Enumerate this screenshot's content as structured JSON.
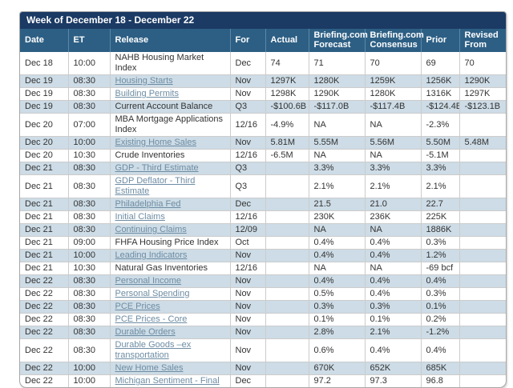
{
  "calendar": {
    "title": "Week of December 18 - December 22",
    "columns": [
      "Date",
      "ET",
      "Release",
      "For",
      "Actual",
      "Briefing.com Forecast",
      "Briefing.com Consensus",
      "Prior",
      "Revised From"
    ],
    "rows": [
      {
        "date": "Dec 18",
        "et": "10:00",
        "release": "NAHB Housing Market Index",
        "is_link": false,
        "for": "Dec",
        "actual": "74",
        "forecast": "71",
        "consensus": "70",
        "prior": "69",
        "revised_from": "70"
      },
      {
        "date": "Dec 19",
        "et": "08:30",
        "release": "Housing Starts",
        "is_link": true,
        "for": "Nov",
        "actual": "1297K",
        "forecast": "1280K",
        "consensus": "1259K",
        "prior": "1256K",
        "revised_from": "1290K"
      },
      {
        "date": "Dec 19",
        "et": "08:30",
        "release": "Building Permits",
        "is_link": true,
        "for": "Nov",
        "actual": "1298K",
        "forecast": "1290K",
        "consensus": "1280K",
        "prior": "1316K",
        "revised_from": "1297K"
      },
      {
        "date": "Dec 19",
        "et": "08:30",
        "release": "Current Account Balance",
        "is_link": false,
        "for": "Q3",
        "actual": "-$100.6B",
        "forecast": "-$117.0B",
        "consensus": "-$117.4B",
        "prior": "-$124.4B",
        "revised_from": "-$123.1B"
      },
      {
        "date": "Dec 20",
        "et": "07:00",
        "release": "MBA Mortgage Applications\nIndex",
        "is_link": false,
        "for": "12/16",
        "actual": "-4.9%",
        "forecast": "NA",
        "consensus": "NA",
        "prior": "-2.3%",
        "revised_from": ""
      },
      {
        "date": "Dec 20",
        "et": "10:00",
        "release": "Existing Home Sales",
        "is_link": true,
        "for": "Nov",
        "actual": "5.81M",
        "forecast": "5.55M",
        "consensus": "5.56M",
        "prior": "5.50M",
        "revised_from": "5.48M"
      },
      {
        "date": "Dec 20",
        "et": "10:30",
        "release": "Crude Inventories",
        "is_link": false,
        "for": "12/16",
        "actual": "-6.5M",
        "forecast": "NA",
        "consensus": "NA",
        "prior": "-5.1M",
        "revised_from": ""
      },
      {
        "date": "Dec 21",
        "et": "08:30",
        "release": "GDP - Third Estimate",
        "is_link": true,
        "for": "Q3",
        "actual": "",
        "forecast": "3.3%",
        "consensus": "3.3%",
        "prior": "3.3%",
        "revised_from": ""
      },
      {
        "date": "Dec 21",
        "et": "08:30",
        "release": "GDP Deflator - Third Estimate",
        "is_link": true,
        "for": "Q3",
        "actual": "",
        "forecast": "2.1%",
        "consensus": "2.1%",
        "prior": "2.1%",
        "revised_from": ""
      },
      {
        "date": "Dec 21",
        "et": "08:30",
        "release": "Philadelphia Fed",
        "is_link": true,
        "for": "Dec",
        "actual": "",
        "forecast": "21.5",
        "consensus": "21.0",
        "prior": "22.7",
        "revised_from": ""
      },
      {
        "date": "Dec 21",
        "et": "08:30",
        "release": "Initial Claims",
        "is_link": true,
        "for": "12/16",
        "actual": "",
        "forecast": "230K",
        "consensus": "236K",
        "prior": "225K",
        "revised_from": ""
      },
      {
        "date": "Dec 21",
        "et": "08:30",
        "release": "Continuing Claims",
        "is_link": true,
        "for": "12/09",
        "actual": "",
        "forecast": "NA",
        "consensus": "NA",
        "prior": "1886K",
        "revised_from": ""
      },
      {
        "date": "Dec 21",
        "et": "09:00",
        "release": "FHFA Housing Price Index",
        "is_link": false,
        "for": "Oct",
        "actual": "",
        "forecast": "0.4%",
        "consensus": "0.4%",
        "prior": "0.3%",
        "revised_from": ""
      },
      {
        "date": "Dec 21",
        "et": "10:00",
        "release": "Leading Indicators",
        "is_link": true,
        "for": "Nov",
        "actual": "",
        "forecast": "0.4%",
        "consensus": "0.4%",
        "prior": "1.2%",
        "revised_from": ""
      },
      {
        "date": "Dec 21",
        "et": "10:30",
        "release": "Natural Gas Inventories",
        "is_link": false,
        "for": "12/16",
        "actual": "",
        "forecast": "NA",
        "consensus": "NA",
        "prior": "-69 bcf",
        "revised_from": ""
      },
      {
        "date": "Dec 22",
        "et": "08:30",
        "release": "Personal Income",
        "is_link": true,
        "for": "Nov",
        "actual": "",
        "forecast": "0.4%",
        "consensus": "0.4%",
        "prior": "0.4%",
        "revised_from": ""
      },
      {
        "date": "Dec 22",
        "et": "08:30",
        "release": "Personal Spending",
        "is_link": true,
        "for": "Nov",
        "actual": "",
        "forecast": "0.5%",
        "consensus": "0.4%",
        "prior": "0.3%",
        "revised_from": ""
      },
      {
        "date": "Dec 22",
        "et": "08:30",
        "release": "PCE Prices",
        "is_link": true,
        "for": "Nov",
        "actual": "",
        "forecast": "0.3%",
        "consensus": "0.3%",
        "prior": "0.1%",
        "revised_from": ""
      },
      {
        "date": "Dec 22",
        "et": "08:30",
        "release": "PCE Prices - Core",
        "is_link": true,
        "for": "Nov",
        "actual": "",
        "forecast": "0.1%",
        "consensus": "0.1%",
        "prior": "0.2%",
        "revised_from": ""
      },
      {
        "date": "Dec 22",
        "et": "08:30",
        "release": "Durable Orders",
        "is_link": true,
        "for": "Nov",
        "actual": "",
        "forecast": "2.8%",
        "consensus": "2.1%",
        "prior": "-1.2%",
        "revised_from": ""
      },
      {
        "date": "Dec 22",
        "et": "08:30",
        "release": "Durable Goods –ex\ntransportation",
        "is_link": true,
        "for": "Nov",
        "actual": "",
        "forecast": "0.6%",
        "consensus": "0.4%",
        "prior": "0.4%",
        "revised_from": ""
      },
      {
        "date": "Dec 22",
        "et": "10:00",
        "release": "New Home Sales",
        "is_link": true,
        "for": "Nov",
        "actual": "",
        "forecast": "670K",
        "consensus": "652K",
        "prior": "685K",
        "revised_from": ""
      },
      {
        "date": "Dec 22",
        "et": "10:00",
        "release": "Michigan Sentiment - Final",
        "is_link": true,
        "for": "Dec",
        "actual": "",
        "forecast": "97.2",
        "consensus": "97.3",
        "prior": "96.8",
        "revised_from": ""
      }
    ]
  },
  "colors": {
    "title_bar_bg": "#1b3a64",
    "header_bg": "#2d5f84",
    "stripe_bg": "#cddce6",
    "link_color": "#6d8ca3",
    "text_color": "#333333",
    "border_color": "#cccccc"
  }
}
